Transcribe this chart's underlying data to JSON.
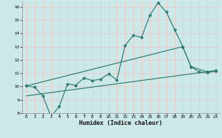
{
  "title": "",
  "xlabel": "Humidex (Indice chaleur)",
  "bg_color": "#cce8e8",
  "grid_color": "#b8d8d8",
  "line_color": "#2d7d6e",
  "xlim": [
    -0.5,
    23.5
  ],
  "ylim": [
    8,
    16.4
  ],
  "xticks": [
    0,
    1,
    2,
    3,
    4,
    5,
    6,
    7,
    8,
    9,
    10,
    11,
    12,
    13,
    14,
    15,
    16,
    17,
    18,
    19,
    20,
    21,
    22,
    23
  ],
  "yticks": [
    8,
    9,
    10,
    11,
    12,
    13,
    14,
    15,
    16
  ],
  "line1_x": [
    0,
    1,
    2,
    3,
    4,
    5,
    6,
    7,
    8,
    9,
    10,
    11,
    12,
    13,
    14,
    15,
    16,
    17,
    18,
    19,
    20,
    21,
    22,
    23
  ],
  "line1_y": [
    10.05,
    9.95,
    9.3,
    7.75,
    8.5,
    10.2,
    10.1,
    10.65,
    10.45,
    10.55,
    10.95,
    10.5,
    13.1,
    13.85,
    13.7,
    15.35,
    16.3,
    15.6,
    14.3,
    13.0,
    11.5,
    11.1,
    11.05,
    11.15
  ],
  "line2_x": [
    0,
    19,
    20,
    22,
    23
  ],
  "line2_y": [
    10.05,
    13.0,
    11.5,
    11.1,
    11.2
  ],
  "line3_x": [
    0,
    23
  ],
  "line3_y": [
    9.3,
    11.2
  ]
}
